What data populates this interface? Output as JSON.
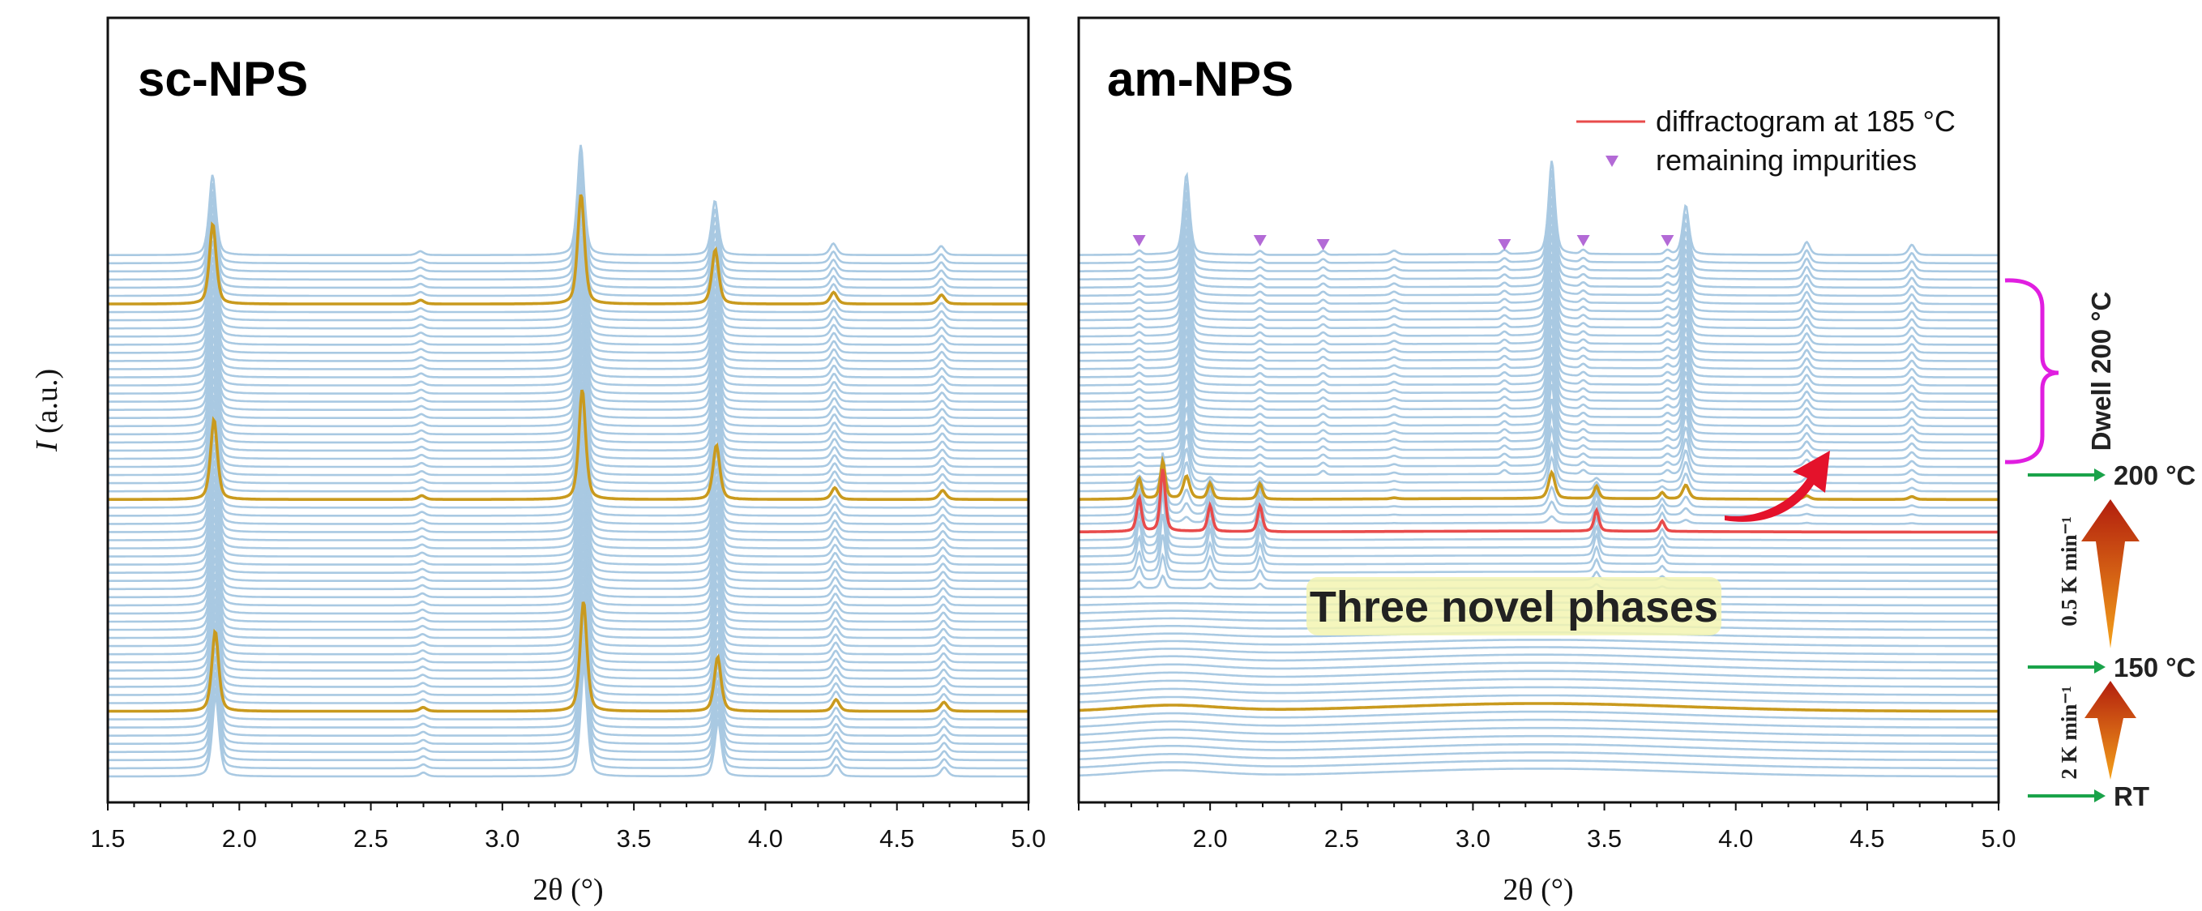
{
  "chart_data": [
    {
      "type": "line",
      "panel_label": "sc-NPS",
      "panel_label_color": "#1b8fa3",
      "xlabel": "2θ (°)",
      "ylabel": "I (a.u.)",
      "xlim": [
        1.5,
        5.0
      ],
      "xticks": [
        "1.5",
        "2.0",
        "2.5",
        "3.0",
        "3.5",
        "4.0",
        "4.5",
        "5.0"
      ],
      "series": [
        {
          "count": 65,
          "color": "#a9c9e2"
        },
        {
          "highlight_indices": [
            8,
            34,
            58
          ],
          "color": "#c99a1e"
        }
      ],
      "peaks": [
        {
          "x": 1.91,
          "rel_height": 0.62
        },
        {
          "x": 2.7,
          "rel_height": 0.03
        },
        {
          "x": 3.31,
          "rel_height": 0.85
        },
        {
          "x": 3.82,
          "rel_height": 0.42
        },
        {
          "x": 4.27,
          "rel_height": 0.09
        },
        {
          "x": 4.68,
          "rel_height": 0.07
        }
      ]
    },
    {
      "type": "line",
      "panel_label": "am-NPS",
      "panel_label_color": "#e5112f",
      "xlabel": "2θ (°)",
      "xlim": [
        1.5,
        5.0
      ],
      "xticks": [
        "2.0",
        "2.5",
        "3.0",
        "3.5",
        "4.0",
        "4.5",
        "5.0"
      ],
      "legend": [
        {
          "label": "diffractogram at 185 °C",
          "color": "#e84b4b",
          "marker": "line"
        },
        {
          "label": "remaining impurities",
          "color": "#b36ad6",
          "marker": "triangle"
        }
      ],
      "annotation": "Three novel phases",
      "series": [
        {
          "count": 65,
          "color": "#a9c9e2"
        },
        {
          "highlight_indices": [
            8,
            34
          ],
          "color": "#c99a1e"
        },
        {
          "highlight_indices": [
            30
          ],
          "color": "#e84b4b",
          "name": "diffractogram at 185 °C"
        }
      ],
      "impurity_markers_x": [
        1.73,
        2.19,
        2.43,
        3.12,
        3.42,
        3.74
      ],
      "crystalline_peaks": [
        {
          "x": 1.91,
          "rel_height": 0.62
        },
        {
          "x": 3.3,
          "rel_height": 0.72
        },
        {
          "x": 3.81,
          "rel_height": 0.38
        },
        {
          "x": 4.27,
          "rel_height": 0.1
        },
        {
          "x": 4.67,
          "rel_height": 0.08
        },
        {
          "x": 2.7,
          "rel_height": 0.03
        }
      ],
      "intermediate_peaks": [
        {
          "x": 1.73,
          "rel_height": 0.26
        },
        {
          "x": 1.82,
          "rel_height": 0.48
        },
        {
          "x": 2.0,
          "rel_height": 0.2
        },
        {
          "x": 2.19,
          "rel_height": 0.2
        },
        {
          "x": 3.47,
          "rel_height": 0.16
        },
        {
          "x": 3.72,
          "rel_height": 0.08
        }
      ]
    }
  ],
  "temperature_scale": {
    "stages": [
      {
        "label": "RT"
      },
      {
        "label": "150 °C"
      },
      {
        "label": "200 °C"
      }
    ],
    "rates": [
      "2 K min⁻¹",
      "0.5 K min⁻¹"
    ],
    "dwell_label": "Dwell 200 °C",
    "arrow_color": "#1aa34a",
    "bracket_color": "#e01ee0",
    "ramp_colors": [
      "#f5a21a",
      "#b21e0e"
    ]
  }
}
